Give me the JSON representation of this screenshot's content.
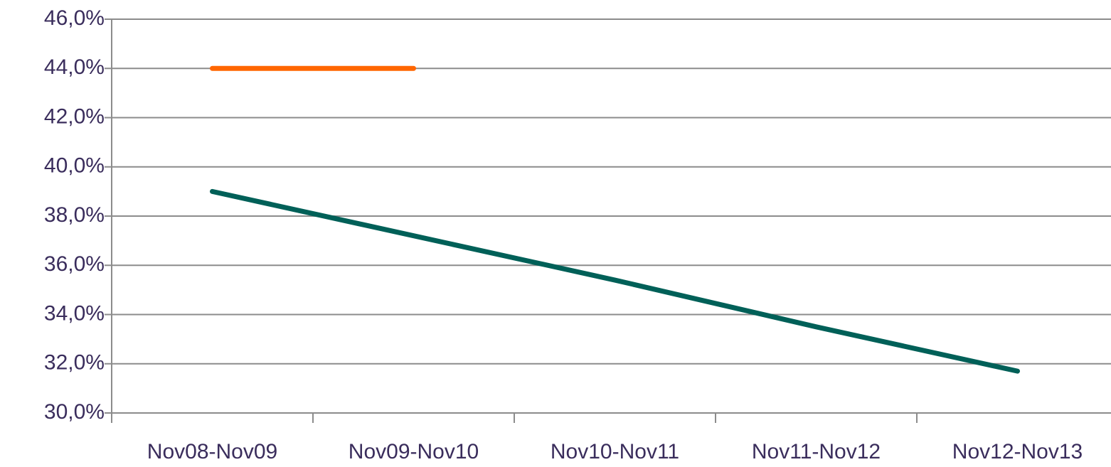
{
  "chart_data": {
    "type": "line",
    "categories": [
      "Nov08-Nov09",
      "Nov09-Nov10",
      "Nov10-Nov11",
      "Nov11-Nov12",
      "Nov12-Nov13"
    ],
    "series": [
      {
        "color": "#ff6600",
        "values": [
          44.0,
          44.0,
          null,
          null,
          null
        ]
      },
      {
        "color": "#006058",
        "values": [
          39.0,
          37.2,
          35.4,
          33.5,
          31.7
        ]
      }
    ],
    "ylim": [
      30,
      46
    ],
    "yticks": [
      {
        "value": 30,
        "label": "30,0%"
      },
      {
        "value": 32,
        "label": "32,0%"
      },
      {
        "value": 34,
        "label": "34,0%"
      },
      {
        "value": 36,
        "label": "36,0%"
      },
      {
        "value": 38,
        "label": "38,0%"
      },
      {
        "value": 40,
        "label": "40,0%"
      },
      {
        "value": 42,
        "label": "42,0%"
      },
      {
        "value": 44,
        "label": "44,0%"
      },
      {
        "value": 46,
        "label": "46,0%"
      }
    ],
    "grid": true
  }
}
